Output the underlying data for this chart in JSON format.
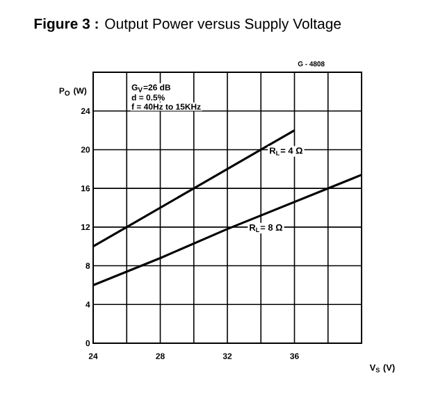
{
  "chart_data": {
    "type": "line",
    "title": "**Figure 3 :**    Output Power versus Supply Voltage",
    "xlabel": "V$_{S}$ (V)",
    "ylabel": "P$_{O}$ (W)",
    "xlim": [
      24,
      40
    ],
    "ylim": [
      0,
      28
    ],
    "xticks": [
      24,
      {
        "value": 26,
        "label": null
      },
      28,
      {
        "value": 30,
        "label": null
      },
      32,
      {
        "value": 34,
        "label": null
      },
      36,
      {
        "value": 38,
        "label": null
      },
      {
        "value": 40,
        "label": null
      }
    ],
    "yticks": [
      0,
      4,
      8,
      12,
      16,
      20,
      24,
      {
        "value": 28,
        "label": null
      }
    ],
    "grid": true,
    "series": [
      {
        "name": "R$_{L}$= 4 Ω",
        "color": "#000000",
        "x": [
          24,
          26,
          30,
          34,
          36
        ],
        "values": [
          10,
          12,
          16,
          20,
          22
        ]
      },
      {
        "name": "R$_{L}$= 8 Ω",
        "color": "#000000",
        "x": [
          24,
          28,
          32,
          38,
          40
        ],
        "values": [
          6,
          8.8,
          11.8,
          16,
          17.4
        ]
      }
    ],
    "annotations": [
      "G - 4808",
      "G$_{V}$=26 dB",
      "d = 0.5%",
      "f = 40Hz  to 15KHz"
    ]
  }
}
